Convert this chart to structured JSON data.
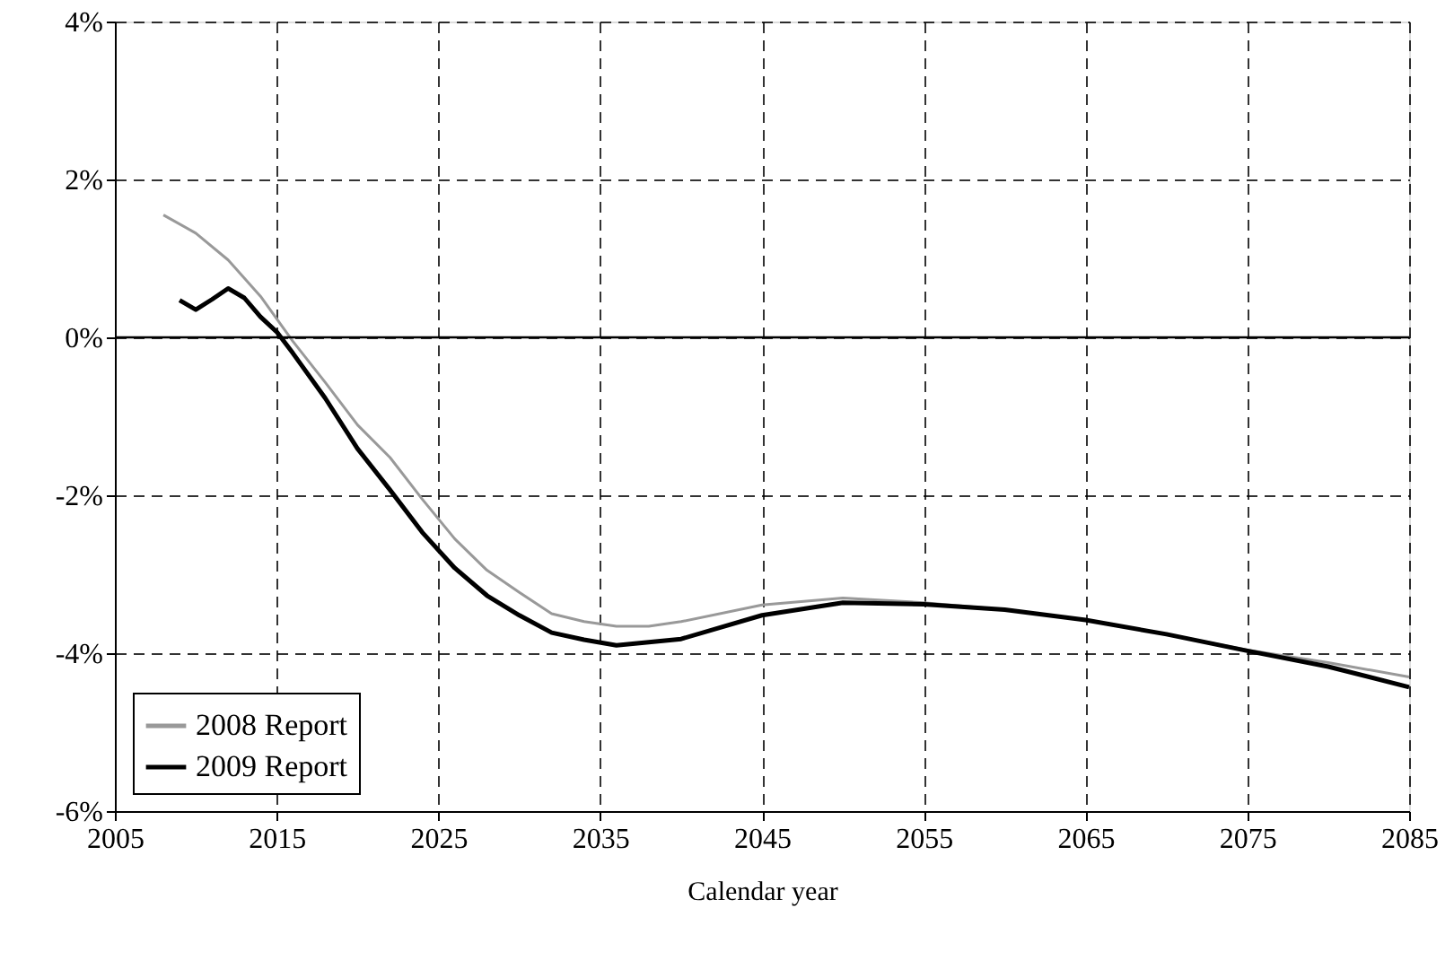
{
  "chart_data": {
    "type": "line",
    "xlabel": "Calendar year",
    "xlim": [
      2005,
      2085
    ],
    "xticks": [
      2005,
      2015,
      2025,
      2035,
      2045,
      2055,
      2065,
      2075,
      2085
    ],
    "ylim": [
      -6,
      4
    ],
    "yticks": [
      {
        "value": -6,
        "label": "-6%"
      },
      {
        "value": -4,
        "label": "-4%"
      },
      {
        "value": -2,
        "label": "-2%"
      },
      {
        "value": 0,
        "label": "0%"
      },
      {
        "value": 2,
        "label": "2%"
      },
      {
        "value": 4,
        "label": "4%"
      }
    ],
    "grid": true,
    "legend": "bottom left",
    "line_style": "solid",
    "ref_lines": [
      {
        "axis": "y",
        "value": 0,
        "color": "#000000",
        "line_style": "solid"
      }
    ],
    "series": [
      {
        "name": "2008 Report",
        "color": "#999999",
        "x": [
          2008,
          2010,
          2012,
          2014,
          2016,
          2018,
          2020,
          2022,
          2024,
          2026,
          2028,
          2030,
          2032,
          2034,
          2036,
          2038,
          2040,
          2045,
          2050,
          2055,
          2060,
          2065,
          2070,
          2075,
          2080,
          2085
        ],
        "values": [
          1.55,
          1.32,
          0.98,
          0.52,
          -0.05,
          -0.57,
          -1.11,
          -1.52,
          -2.05,
          -2.55,
          -2.95,
          -3.23,
          -3.5,
          -3.6,
          -3.66,
          -3.66,
          -3.6,
          -3.39,
          -3.3,
          -3.36,
          -3.45,
          -3.58,
          -3.76,
          -3.96,
          -4.12,
          -4.3
        ]
      },
      {
        "name": "2009 Report",
        "color": "#000000",
        "x": [
          2009,
          2010,
          2011,
          2012,
          2013,
          2014,
          2015,
          2016,
          2018,
          2020,
          2022,
          2024,
          2026,
          2028,
          2030,
          2032,
          2034,
          2036,
          2038,
          2040,
          2045,
          2050,
          2055,
          2060,
          2065,
          2070,
          2075,
          2080,
          2085
        ],
        "values": [
          0.47,
          0.35,
          0.48,
          0.62,
          0.5,
          0.26,
          0.07,
          -0.2,
          -0.77,
          -1.41,
          -1.93,
          -2.47,
          -2.92,
          -3.27,
          -3.52,
          -3.74,
          -3.83,
          -3.9,
          -3.86,
          -3.82,
          -3.52,
          -3.36,
          -3.38,
          -3.45,
          -3.58,
          -3.76,
          -3.97,
          -4.17,
          -4.43
        ]
      }
    ]
  }
}
